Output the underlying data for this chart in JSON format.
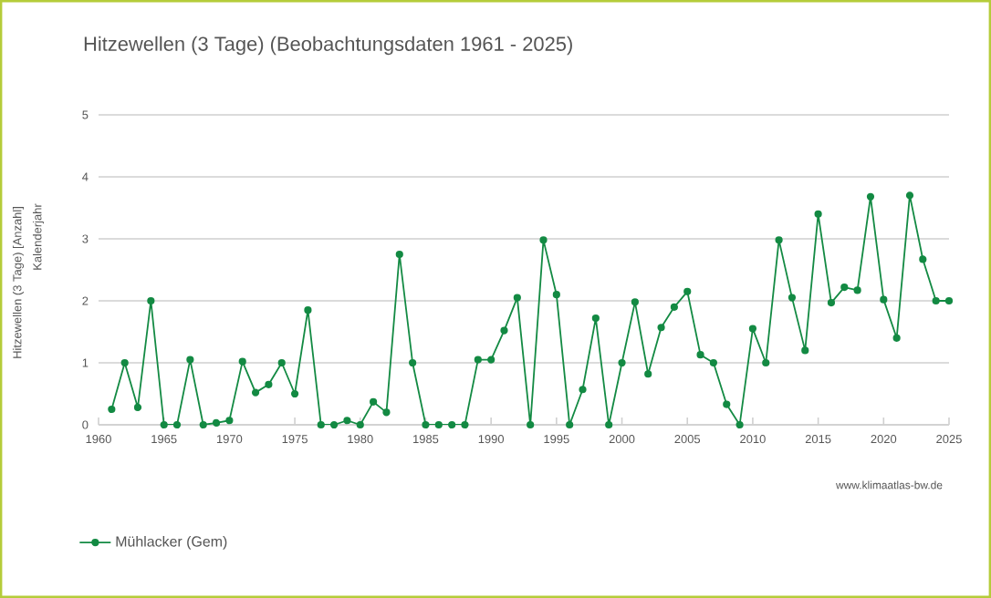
{
  "chart_data": {
    "type": "line",
    "title": "Hitzewellen (3 Tage) (Beobachtungsdaten 1961 - 2025)",
    "ylabel": "Hitzewellen (3 Tage) [Anzahl]",
    "x": [
      1961,
      1962,
      1963,
      1964,
      1965,
      1966,
      1967,
      1968,
      1969,
      1970,
      1971,
      1972,
      1973,
      1974,
      1975,
      1976,
      1977,
      1978,
      1979,
      1980,
      1981,
      1982,
      1983,
      1984,
      1985,
      1986,
      1987,
      1988,
      1989,
      1990,
      1991,
      1992,
      1993,
      1994,
      1995,
      1996,
      1997,
      1998,
      1999,
      2000,
      2001,
      2002,
      2003,
      2004,
      2005,
      2006,
      2007,
      2008,
      2009,
      2010,
      2011,
      2012,
      2013,
      2014,
      2015,
      2016,
      2017,
      2018,
      2019,
      2020,
      2021,
      2022,
      2023,
      2024,
      2025
    ],
    "series": [
      {
        "name": "Mühlacker (Gem)",
        "color": "#138a43",
        "values": [
          0.25,
          1.0,
          0.28,
          2.0,
          0,
          0,
          1.05,
          0,
          0.03,
          0.07,
          1.02,
          0.52,
          0.65,
          1.0,
          0.5,
          1.85,
          0,
          0,
          0.07,
          0,
          0.37,
          0.2,
          2.75,
          1.0,
          0,
          0,
          0,
          0,
          1.05,
          1.05,
          1.52,
          2.05,
          0,
          2.98,
          2.1,
          0,
          0.57,
          1.72,
          0,
          1.0,
          1.98,
          0.82,
          1.57,
          1.9,
          2.15,
          1.13,
          1.0,
          0.33,
          0,
          1.55,
          1.0,
          2.98,
          2.05,
          1.2,
          3.4,
          1.97,
          2.22,
          2.17,
          3.68,
          2.02,
          1.4,
          3.7,
          2.67,
          2.0,
          2.0
        ]
      }
    ],
    "xlim": [
      1960,
      2025
    ],
    "xticks": [
      1960,
      1965,
      1970,
      1975,
      1980,
      1985,
      1990,
      1995,
      2000,
      2005,
      2010,
      2015,
      2020,
      2025
    ],
    "ylim": [
      0,
      5
    ],
    "yticks": [
      0,
      1,
      2,
      3,
      4,
      5
    ],
    "grid": "y",
    "marker": "circle",
    "line_style": "solid",
    "legend": "bottom left",
    "annotations": [
      "Kalenderjahr",
      "www.klimaatlas-bw.de"
    ]
  }
}
